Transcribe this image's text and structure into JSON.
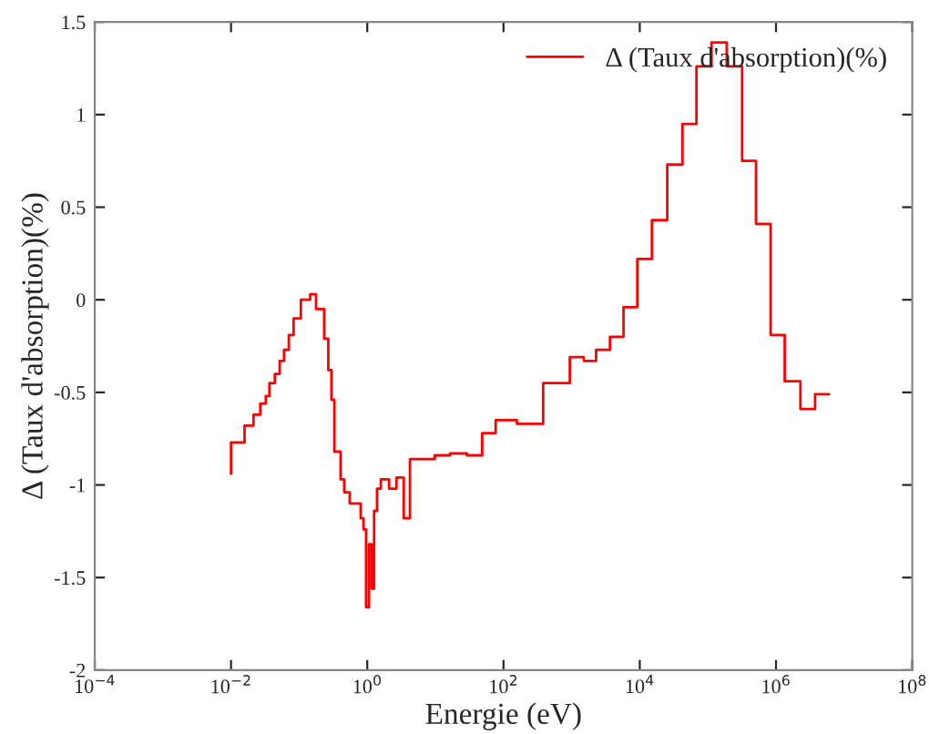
{
  "chart_data": {
    "type": "step",
    "xlabel": "Energie (eV)",
    "ylabel": "Δ (Taux d'absorption)(%)",
    "log": "x",
    "grid": false,
    "legend": "top right",
    "xlim": [
      0.0001,
      100000000
    ],
    "ylim": [
      -2,
      1.5
    ],
    "xticks": [
      {
        "value": 0.0001,
        "label": "10$^{−4}$"
      },
      {
        "value": 0.01,
        "label": "10$^{−2}$"
      },
      {
        "value": 1,
        "label": "10$^{0}$"
      },
      {
        "value": 100,
        "label": "10$^{2}$"
      },
      {
        "value": 10000,
        "label": "10$^{4}$"
      },
      {
        "value": 1000000,
        "label": "10$^{6}$"
      },
      {
        "value": 100000000,
        "label": "10$^{8}$"
      }
    ],
    "yticks": [
      -2,
      -1.5,
      -1,
      -0.5,
      0,
      0.5,
      1,
      1.5
    ],
    "series": [
      {
        "name": "Δ (Taux d'absorption)(%)",
        "color": "#ff0000",
        "x": [
          0.01,
          0.01,
          0.0158,
          0.0214,
          0.0269,
          0.0324,
          0.0366,
          0.044,
          0.0518,
          0.06,
          0.0705,
          0.083,
          0.106,
          0.145,
          0.177,
          0.233,
          0.268,
          0.298,
          0.329,
          0.406,
          0.459,
          0.552,
          0.8,
          0.88,
          0.96,
          1.06,
          1.16,
          1.26,
          1.39,
          1.58,
          2.09,
          2.68,
          3.43,
          4.23,
          9.8,
          16.4,
          29,
          48.6,
          76.7,
          157,
          382,
          940,
          1510,
          2285,
          3650,
          5770,
          9200,
          15070,
          25300,
          42300,
          67900,
          113000,
          189000,
          318000,
          508000,
          832000,
          1340000,
          2280000,
          3740000,
          6000000
        ],
        "values": [
          -0.94,
          -0.77,
          -0.68,
          -0.62,
          -0.56,
          -0.52,
          -0.45,
          -0.4,
          -0.33,
          -0.27,
          -0.19,
          -0.1,
          0.0,
          0.03,
          -0.05,
          -0.21,
          -0.38,
          -0.54,
          -0.82,
          -0.97,
          -1.04,
          -1.1,
          -1.18,
          -1.24,
          -1.66,
          -1.32,
          -1.56,
          -1.14,
          -1.02,
          -0.97,
          -1.02,
          -0.96,
          -1.18,
          -0.86,
          -0.84,
          -0.83,
          -0.84,
          -0.72,
          -0.65,
          -0.67,
          -0.45,
          -0.31,
          -0.33,
          -0.27,
          -0.2,
          -0.04,
          0.22,
          0.43,
          0.73,
          0.95,
          1.26,
          1.39,
          1.26,
          0.75,
          0.41,
          -0.19,
          -0.44,
          -0.59,
          -0.51,
          -0.51
        ]
      }
    ]
  }
}
